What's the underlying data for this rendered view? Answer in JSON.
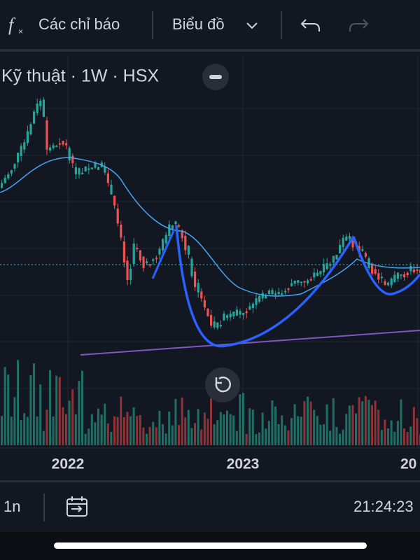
{
  "toolbar": {
    "indicators": "Các chỉ báo",
    "chart": "Biểu đồ"
  },
  "chart_header": {
    "title": "Kỹ thuật · 1W · HSX"
  },
  "time_axis": {
    "labels": [
      "2022",
      "2023",
      "20"
    ]
  },
  "footer": {
    "range": "1n",
    "clock": "21:24:23"
  }
}
